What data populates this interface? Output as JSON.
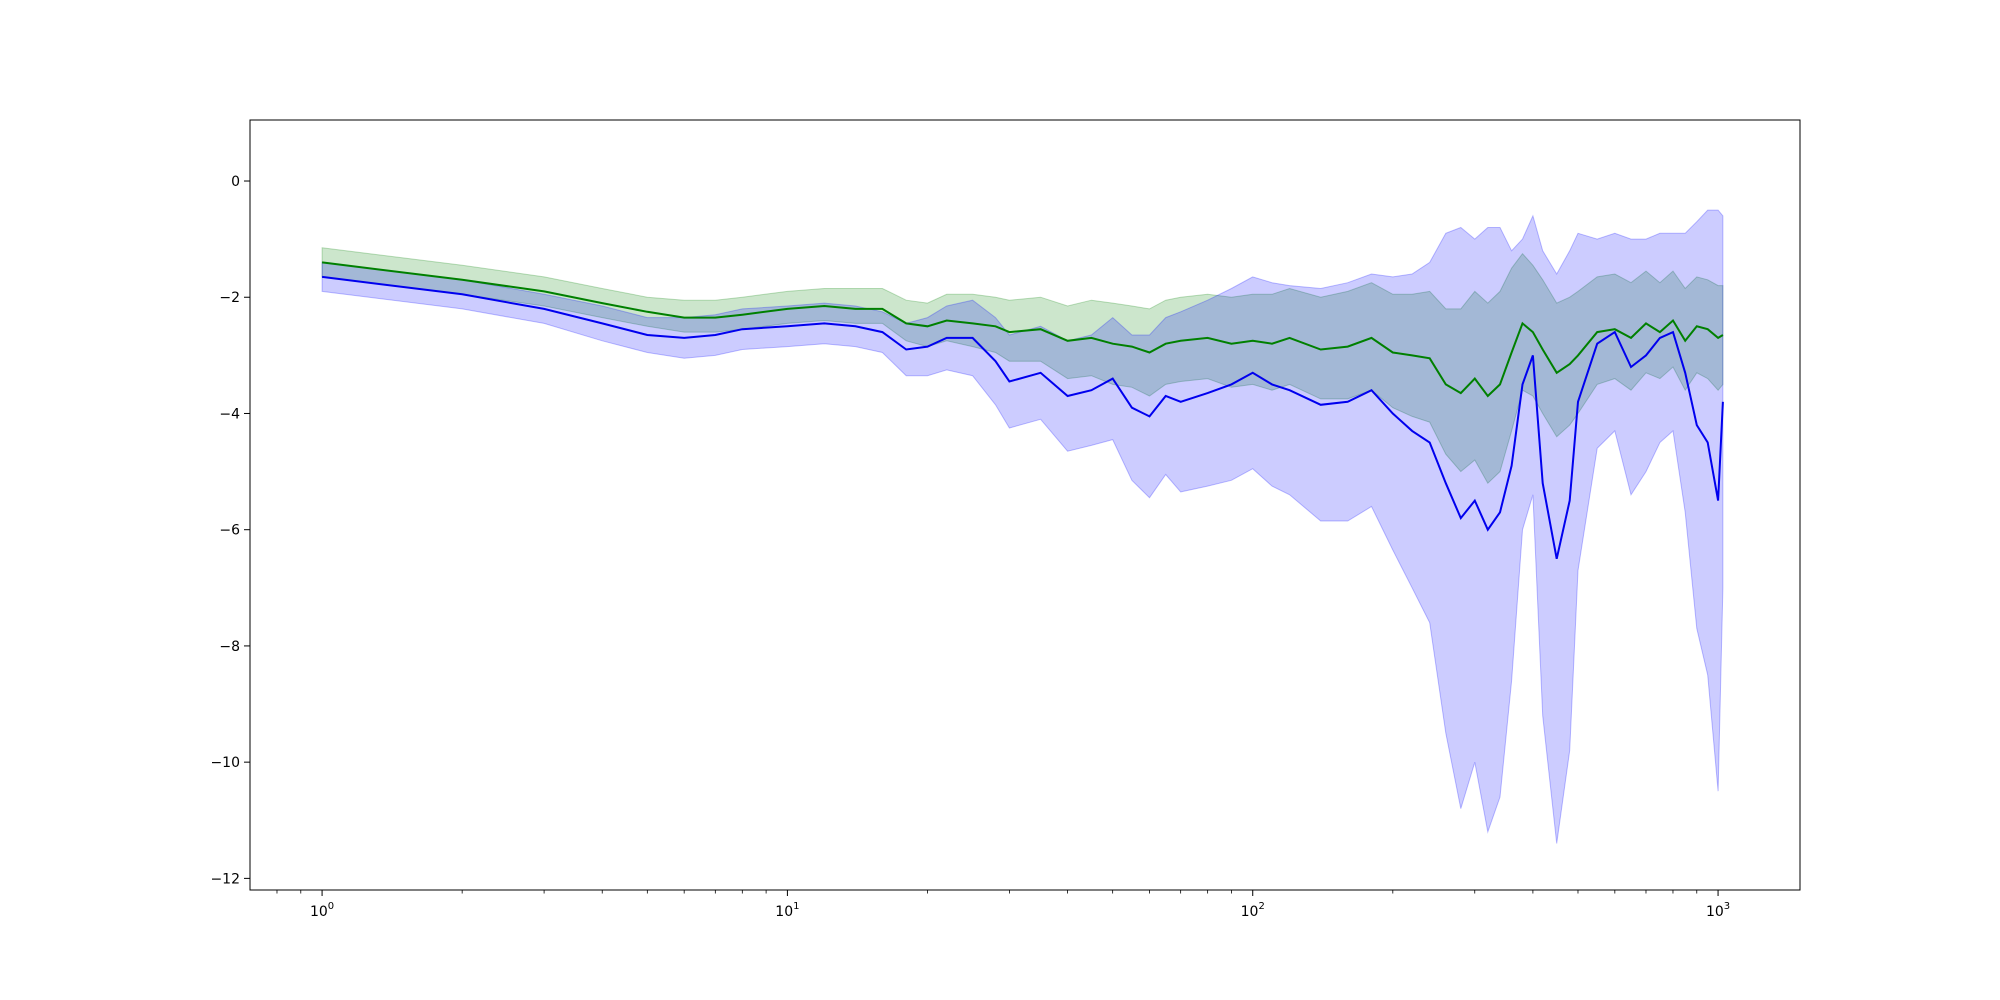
{
  "chart_data": {
    "type": "line",
    "title": "",
    "xlabel": "",
    "ylabel": "",
    "xscale": "log",
    "xlim": [
      0.7,
      1500
    ],
    "ylim": [
      -12.2,
      1.05
    ],
    "grid": false,
    "legend": "none",
    "x_ticks": [
      {
        "value": 1,
        "base": "10",
        "exp": "0"
      },
      {
        "value": 10,
        "base": "10",
        "exp": "1"
      },
      {
        "value": 100,
        "base": "10",
        "exp": "2"
      },
      {
        "value": 1000,
        "base": "10",
        "exp": "3"
      }
    ],
    "y_ticks": [
      {
        "value": 0,
        "label": "0"
      },
      {
        "value": -2,
        "label": "−2"
      },
      {
        "value": -4,
        "label": "−4"
      },
      {
        "value": -6,
        "label": "−6"
      },
      {
        "value": -8,
        "label": "−8"
      },
      {
        "value": -10,
        "label": "−10"
      },
      {
        "value": -12,
        "label": "−12"
      }
    ],
    "series": [
      {
        "color": "#008000",
        "band_color": "#008000",
        "band_opacity": 0.2,
        "x": [
          1,
          2,
          3,
          4,
          5,
          6,
          7,
          8,
          10,
          12,
          14,
          16,
          18,
          20,
          22,
          25,
          28,
          30,
          35,
          40,
          45,
          50,
          55,
          60,
          65,
          70,
          80,
          90,
          100,
          110,
          120,
          140,
          160,
          180,
          200,
          220,
          240,
          260,
          280,
          300,
          320,
          340,
          360,
          380,
          400,
          420,
          450,
          480,
          500,
          550,
          600,
          650,
          700,
          750,
          800,
          850,
          900,
          950,
          1000,
          1024
        ],
        "values": [
          -1.4,
          -1.7,
          -1.9,
          -2.1,
          -2.25,
          -2.35,
          -2.35,
          -2.3,
          -2.2,
          -2.15,
          -2.2,
          -2.2,
          -2.45,
          -2.5,
          -2.4,
          -2.45,
          -2.5,
          -2.6,
          -2.55,
          -2.75,
          -2.7,
          -2.8,
          -2.85,
          -2.95,
          -2.8,
          -2.75,
          -2.7,
          -2.8,
          -2.75,
          -2.8,
          -2.7,
          -2.9,
          -2.85,
          -2.7,
          -2.95,
          -3.0,
          -3.05,
          -3.5,
          -3.65,
          -3.4,
          -3.7,
          -3.5,
          -2.95,
          -2.45,
          -2.6,
          -2.9,
          -3.3,
          -3.15,
          -3.0,
          -2.6,
          -2.55,
          -2.7,
          -2.45,
          -2.6,
          -2.4,
          -2.75,
          -2.5,
          -2.55,
          -2.7,
          -2.65
        ],
        "band_low": [
          -1.65,
          -1.95,
          -2.15,
          -2.35,
          -2.5,
          -2.6,
          -2.6,
          -2.55,
          -2.45,
          -2.4,
          -2.45,
          -2.45,
          -2.75,
          -2.85,
          -2.75,
          -2.85,
          -2.95,
          -3.1,
          -3.1,
          -3.4,
          -3.35,
          -3.5,
          -3.55,
          -3.7,
          -3.5,
          -3.45,
          -3.4,
          -3.55,
          -3.5,
          -3.6,
          -3.5,
          -3.75,
          -3.75,
          -3.6,
          -3.9,
          -4.05,
          -4.15,
          -4.7,
          -5.0,
          -4.8,
          -5.2,
          -5.0,
          -4.3,
          -3.6,
          -3.7,
          -4.0,
          -4.4,
          -4.2,
          -4.0,
          -3.5,
          -3.4,
          -3.6,
          -3.3,
          -3.4,
          -3.2,
          -3.6,
          -3.3,
          -3.4,
          -3.6,
          -3.5
        ],
        "band_high": [
          -1.15,
          -1.45,
          -1.65,
          -1.85,
          -2.0,
          -2.05,
          -2.05,
          -2.0,
          -1.9,
          -1.85,
          -1.85,
          -1.85,
          -2.05,
          -2.1,
          -1.95,
          -1.95,
          -2.0,
          -2.05,
          -2.0,
          -2.15,
          -2.05,
          -2.1,
          -2.15,
          -2.2,
          -2.05,
          -2.0,
          -1.95,
          -2.0,
          -1.95,
          -1.95,
          -1.85,
          -2.0,
          -1.9,
          -1.75,
          -1.95,
          -1.95,
          -1.9,
          -2.2,
          -2.2,
          -1.9,
          -2.1,
          -1.9,
          -1.5,
          -1.25,
          -1.45,
          -1.7,
          -2.1,
          -2.0,
          -1.9,
          -1.65,
          -1.6,
          -1.75,
          -1.55,
          -1.75,
          -1.55,
          -1.85,
          -1.65,
          -1.7,
          -1.8,
          -1.8
        ]
      },
      {
        "color": "#0000ee",
        "band_color": "#0000ff",
        "band_opacity": 0.2,
        "x": [
          1,
          2,
          3,
          4,
          5,
          6,
          7,
          8,
          10,
          12,
          14,
          16,
          18,
          20,
          22,
          25,
          28,
          30,
          35,
          40,
          45,
          50,
          55,
          60,
          65,
          70,
          80,
          90,
          100,
          110,
          120,
          140,
          160,
          180,
          200,
          220,
          240,
          260,
          280,
          300,
          320,
          340,
          360,
          380,
          400,
          420,
          450,
          480,
          500,
          550,
          600,
          650,
          700,
          750,
          800,
          850,
          900,
          950,
          1000,
          1024
        ],
        "values": [
          -1.65,
          -1.95,
          -2.2,
          -2.45,
          -2.65,
          -2.7,
          -2.65,
          -2.55,
          -2.5,
          -2.45,
          -2.5,
          -2.6,
          -2.9,
          -2.85,
          -2.7,
          -2.7,
          -3.1,
          -3.45,
          -3.3,
          -3.7,
          -3.6,
          -3.4,
          -3.9,
          -4.05,
          -3.7,
          -3.8,
          -3.65,
          -3.5,
          -3.3,
          -3.5,
          -3.6,
          -3.85,
          -3.8,
          -3.6,
          -4.0,
          -4.3,
          -4.5,
          -5.2,
          -5.8,
          -5.5,
          -6.0,
          -5.7,
          -4.9,
          -3.5,
          -3.0,
          -5.2,
          -6.5,
          -5.5,
          -3.8,
          -2.8,
          -2.6,
          -3.2,
          -3.0,
          -2.7,
          -2.6,
          -3.3,
          -4.2,
          -4.5,
          -5.5,
          -3.8
        ],
        "band_low": [
          -1.9,
          -2.2,
          -2.45,
          -2.75,
          -2.95,
          -3.05,
          -3.0,
          -2.9,
          -2.85,
          -2.8,
          -2.85,
          -2.95,
          -3.35,
          -3.35,
          -3.25,
          -3.35,
          -3.85,
          -4.25,
          -4.1,
          -4.65,
          -4.55,
          -4.45,
          -5.15,
          -5.45,
          -5.05,
          -5.35,
          -5.25,
          -5.15,
          -4.95,
          -5.25,
          -5.4,
          -5.85,
          -5.85,
          -5.6,
          -6.35,
          -7.0,
          -7.6,
          -9.5,
          -10.8,
          -10.0,
          -11.2,
          -10.6,
          -8.6,
          -6.0,
          -5.4,
          -9.2,
          -11.4,
          -9.8,
          -6.7,
          -4.6,
          -4.3,
          -5.4,
          -5.0,
          -4.5,
          -4.3,
          -5.7,
          -7.7,
          -8.5,
          -10.5,
          -7.0
        ],
        "band_high": [
          -1.4,
          -1.7,
          -1.95,
          -2.15,
          -2.35,
          -2.35,
          -2.3,
          -2.2,
          -2.15,
          -2.1,
          -2.15,
          -2.25,
          -2.45,
          -2.35,
          -2.15,
          -2.05,
          -2.35,
          -2.65,
          -2.5,
          -2.75,
          -2.65,
          -2.35,
          -2.65,
          -2.65,
          -2.35,
          -2.25,
          -2.05,
          -1.85,
          -1.65,
          -1.75,
          -1.8,
          -1.85,
          -1.75,
          -1.6,
          -1.65,
          -1.6,
          -1.4,
          -0.9,
          -0.8,
          -1.0,
          -0.8,
          -0.8,
          -1.2,
          -1.0,
          -0.6,
          -1.2,
          -1.6,
          -1.2,
          -0.9,
          -1.0,
          -0.9,
          -1.0,
          -1.0,
          -0.9,
          -0.9,
          -0.9,
          -0.7,
          -0.5,
          -0.5,
          -0.6
        ]
      }
    ]
  }
}
